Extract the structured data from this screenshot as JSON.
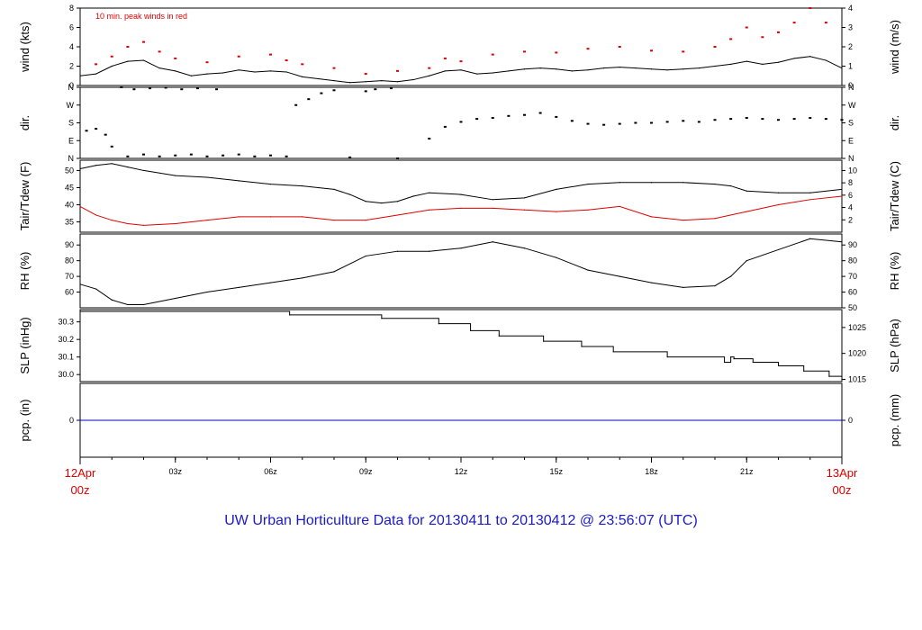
{
  "title": "UW Urban Horticulture Data for 20130411  to  20130412 @ 23:56:07  (UTC)",
  "colors": {
    "title": "#1a1acc",
    "end_labels": "#dd0000",
    "temp": "#000000",
    "dew": "#dd0000",
    "gust": "#dd0000",
    "precip": "#0000cc",
    "frame": "#000000"
  },
  "xaxis": {
    "start": {
      "line1": "12Apr",
      "line2": "00z"
    },
    "end": {
      "line1": "13Apr",
      "line2": "00z"
    },
    "ticks": [
      "03z",
      "06z",
      "09z",
      "12z",
      "15z",
      "18z",
      "21z"
    ],
    "range_hours": [
      0,
      24
    ]
  },
  "chart_data": [
    {
      "type": "line",
      "ylabel_left": "wind (kts)",
      "ylabel_right": "wind (m/s)",
      "annotation": "10 min. peak winds in red",
      "ylim": [
        0,
        8
      ],
      "left_ticks": [
        "0",
        "2",
        "4",
        "6",
        "8"
      ],
      "right_ticks": [
        "0",
        "1",
        "2",
        "3",
        "4"
      ],
      "series": [
        {
          "name": "10 min. peak winds in red",
          "style": "points",
          "x": [
            0.5,
            1.0,
            1.5,
            2.0,
            2.5,
            3.0,
            4.0,
            5.0,
            6.0,
            6.5,
            7.0,
            8.0,
            9.0,
            10.0,
            11.0,
            11.5,
            12.0,
            13.0,
            14.0,
            15.0,
            16.0,
            17.0,
            18.0,
            19.0,
            20.0,
            20.5,
            21.0,
            21.5,
            22.0,
            22.5,
            23.0,
            23.5
          ],
          "values": [
            2.2,
            3.0,
            4.0,
            4.5,
            3.5,
            2.8,
            2.4,
            3.0,
            3.2,
            2.6,
            2.2,
            1.8,
            1.2,
            1.5,
            1.8,
            2.8,
            2.5,
            3.2,
            3.5,
            3.4,
            3.8,
            4.0,
            3.6,
            3.5,
            4.0,
            4.8,
            6.0,
            5.0,
            5.5,
            6.5,
            8.0,
            6.5
          ]
        },
        {
          "name": "",
          "style": "line",
          "x": [
            0,
            0.5,
            1.0,
            1.5,
            2.0,
            2.5,
            3.0,
            3.5,
            4.0,
            4.5,
            5.0,
            5.5,
            6.0,
            6.5,
            7.0,
            7.5,
            8.0,
            8.5,
            9.0,
            9.5,
            10.0,
            10.5,
            11.0,
            11.5,
            12.0,
            12.5,
            13.0,
            13.5,
            14.0,
            14.5,
            15.0,
            15.5,
            16.0,
            16.5,
            17.0,
            17.5,
            18.0,
            18.5,
            19.0,
            19.5,
            20.0,
            20.5,
            21.0,
            21.5,
            22.0,
            22.5,
            23.0,
            23.5,
            24.0
          ],
          "values": [
            1.0,
            1.2,
            2.0,
            2.5,
            2.6,
            1.8,
            1.5,
            1.0,
            1.2,
            1.3,
            1.6,
            1.4,
            1.5,
            1.4,
            0.9,
            0.7,
            0.5,
            0.3,
            0.4,
            0.5,
            0.4,
            0.6,
            1.0,
            1.5,
            1.6,
            1.2,
            1.3,
            1.5,
            1.7,
            1.8,
            1.7,
            1.5,
            1.6,
            1.8,
            1.9,
            1.8,
            1.7,
            1.6,
            1.7,
            1.8,
            2.0,
            2.2,
            2.5,
            2.2,
            2.4,
            2.8,
            3.0,
            2.6,
            1.8
          ]
        }
      ]
    },
    {
      "type": "scatter",
      "ylabel_left": "dir.",
      "ylabel_right": "dir.",
      "ylim": [
        0,
        360
      ],
      "left_ticks": [
        "N",
        "E",
        "S",
        "W",
        "N"
      ],
      "right_ticks": [
        "N",
        "E",
        "S",
        "W",
        "N"
      ],
      "series": [
        {
          "name": "",
          "x": [
            0.2,
            0.5,
            0.8,
            1.0,
            1.5,
            2.0,
            2.5,
            3.0,
            3.5,
            4.0,
            4.5,
            5.0,
            5.5,
            6.0,
            6.5,
            1.3,
            1.7,
            2.2,
            2.7,
            3.2,
            3.7,
            4.3,
            6.8,
            7.2,
            7.6,
            8.0,
            8.5,
            9.0,
            9.3,
            9.8,
            10.0,
            11.0,
            11.5,
            12.0,
            12.5,
            13.0,
            13.5,
            14.0,
            14.5,
            15.0,
            15.5,
            16.0,
            16.5,
            17.0,
            17.5,
            18.0,
            18.5,
            19.0,
            19.5,
            20.0,
            20.5,
            21.0,
            21.5,
            22.0,
            22.5,
            23.0,
            23.5,
            24.0
          ],
          "values": [
            140,
            150,
            120,
            60,
            10,
            20,
            10,
            15,
            20,
            10,
            15,
            20,
            10,
            15,
            10,
            360,
            350,
            355,
            358,
            350,
            355,
            350,
            270,
            300,
            330,
            345,
            5,
            340,
            350,
            355,
            0,
            100,
            160,
            185,
            200,
            205,
            215,
            220,
            230,
            210,
            190,
            175,
            170,
            175,
            180,
            180,
            185,
            190,
            185,
            195,
            200,
            205,
            200,
            195,
            200,
            205,
            200,
            195
          ]
        }
      ]
    },
    {
      "type": "line",
      "ylabel_left": "Tair/Tdew (F)",
      "ylabel_right": "Tair/Tdew (C)",
      "ylim": [
        32,
        53
      ],
      "left_ticks": [
        "35",
        "40",
        "45",
        "50"
      ],
      "right_ticks": [
        "2",
        "4",
        "6",
        "8",
        "10"
      ],
      "series": [
        {
          "name": "",
          "x": [
            0,
            0.5,
            1.0,
            1.5,
            2.0,
            3.0,
            4.0,
            5.0,
            6.0,
            7.0,
            7.5,
            8.0,
            8.5,
            9.0,
            9.5,
            10.0,
            10.5,
            11.0,
            12.0,
            13.0,
            14.0,
            15.0,
            16.0,
            17.0,
            18.0,
            19.0,
            20.0,
            20.5,
            21.0,
            22.0,
            23.0,
            24.0
          ],
          "values": [
            50.5,
            51.5,
            52.0,
            51.0,
            50.0,
            48.5,
            48.0,
            47.0,
            46.0,
            45.5,
            45.0,
            44.5,
            43.0,
            41.0,
            40.5,
            41.0,
            42.5,
            43.5,
            43.0,
            41.5,
            42.0,
            44.5,
            46.0,
            46.5,
            46.5,
            46.5,
            46.0,
            45.5,
            44.0,
            43.5,
            43.5,
            44.5
          ]
        },
        {
          "name": "",
          "x": [
            0,
            0.5,
            1.0,
            1.5,
            2.0,
            3.0,
            4.0,
            5.0,
            6.0,
            7.0,
            8.0,
            9.0,
            10.0,
            11.0,
            12.0,
            13.0,
            14.0,
            15.0,
            16.0,
            17.0,
            18.0,
            19.0,
            20.0,
            21.0,
            22.0,
            23.0,
            24.0
          ],
          "values": [
            39.5,
            37.0,
            35.5,
            34.5,
            34.0,
            34.5,
            35.5,
            36.5,
            36.5,
            36.5,
            35.5,
            35.5,
            37.0,
            38.5,
            39.0,
            39.0,
            38.5,
            38.0,
            38.5,
            39.5,
            36.5,
            35.5,
            36.0,
            38.0,
            40.0,
            41.5,
            42.5
          ]
        }
      ]
    },
    {
      "type": "line",
      "ylabel_left": "RH (%)",
      "ylabel_right": "RH (%)",
      "ylim": [
        50,
        97
      ],
      "left_ticks": [
        "60",
        "70",
        "80",
        "90"
      ],
      "right_ticks": [
        "50",
        "60",
        "70",
        "80",
        "90"
      ],
      "series": [
        {
          "name": "",
          "x": [
            0,
            0.5,
            1.0,
            1.5,
            2.0,
            3.0,
            4.0,
            5.0,
            6.0,
            7.0,
            8.0,
            9.0,
            10.0,
            11.0,
            12.0,
            13.0,
            14.0,
            15.0,
            16.0,
            17.0,
            18.0,
            19.0,
            20.0,
            20.5,
            21.0,
            22.0,
            23.0,
            24.0
          ],
          "values": [
            65.0,
            62.0,
            55.0,
            52.0,
            52.0,
            56.0,
            60.0,
            63.0,
            66.0,
            69.0,
            73.0,
            83.0,
            86.0,
            86.0,
            88.0,
            92.0,
            88.0,
            82.0,
            74.0,
            70.0,
            66.0,
            63.0,
            64.0,
            70.0,
            80.0,
            87.0,
            94.0,
            92.0
          ]
        }
      ]
    },
    {
      "type": "line",
      "ylabel_left": "SLP (inHg)",
      "ylabel_right": "SLP (hPa)",
      "ylim": [
        29.96,
        30.37
      ],
      "left_ticks": [
        "30.0",
        "30.1",
        "30.2",
        "30.3"
      ],
      "right_ticks": [
        "1015",
        "1020",
        "1025"
      ],
      "series": [
        {
          "name": "",
          "style": "step",
          "x": [
            0,
            6.6,
            9.5,
            11.3,
            12.3,
            13.2,
            14.6,
            15.8,
            16.8,
            18.5,
            20.3,
            20.5,
            20.6,
            21.2,
            22.0,
            22.8,
            23.6,
            24.0
          ],
          "values": [
            30.36,
            30.34,
            30.32,
            30.29,
            30.25,
            30.22,
            30.19,
            30.16,
            30.13,
            30.1,
            30.07,
            30.1,
            30.09,
            30.07,
            30.05,
            30.02,
            29.99,
            29.99
          ]
        }
      ]
    },
    {
      "type": "line",
      "ylabel_left": "pcp. (in)",
      "ylabel_right": "pcp. (mm)",
      "ylim": [
        -1,
        1
      ],
      "left_ticks": [
        "0"
      ],
      "right_ticks": [
        "0"
      ],
      "series": [
        {
          "name": "",
          "x": [
            0,
            24
          ],
          "values": [
            0,
            0
          ]
        }
      ]
    }
  ]
}
